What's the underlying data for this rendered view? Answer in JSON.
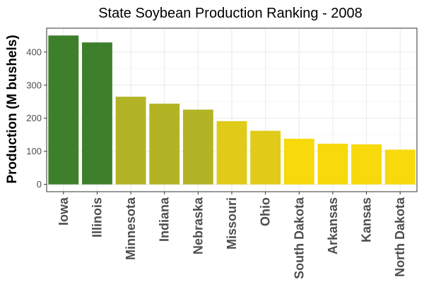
{
  "chart_data": {
    "type": "bar",
    "title": "State Soybean Production Ranking - 2008",
    "xlabel": "",
    "ylabel": "Production (M bushels)",
    "categories": [
      "Iowa",
      "Illinois",
      "Minnesota",
      "Indiana",
      "Nebraska",
      "Missouri",
      "Ohio",
      "South Dakota",
      "Arkansas",
      "Kansas",
      "North Dakota"
    ],
    "values": [
      450,
      429,
      265,
      244,
      226,
      191,
      162,
      138,
      123,
      121,
      105
    ],
    "colors": [
      "#3e7f2c",
      "#3e7f2c",
      "#b3b425",
      "#b3b425",
      "#b3b425",
      "#dfcb18",
      "#dfcb18",
      "#f8d90b",
      "#f8d90b",
      "#f8d90b",
      "#f8d90b"
    ],
    "ylim": [
      -22,
      472
    ],
    "yticks": [
      0,
      100,
      200,
      300,
      400
    ],
    "grid": true,
    "legend": "none"
  }
}
